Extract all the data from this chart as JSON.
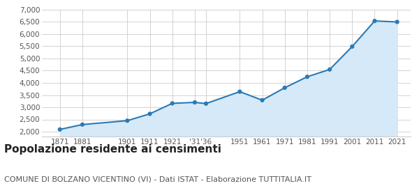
{
  "years": [
    1871,
    1881,
    1901,
    1911,
    1921,
    1931,
    1936,
    1951,
    1961,
    1971,
    1981,
    1991,
    2001,
    2011,
    2021
  ],
  "population": [
    2090,
    2290,
    2450,
    2730,
    3160,
    3200,
    3150,
    3640,
    3290,
    3800,
    4250,
    4550,
    5490,
    6540,
    6500
  ],
  "x_tick_labels": [
    "1871",
    "1881",
    "1901",
    "1911",
    "1921",
    "'31",
    "'36",
    "1951",
    "1961",
    "1971",
    "1981",
    "1991",
    "2001",
    "2011",
    "2021"
  ],
  "ylim_bottom": 1800,
  "ylim_top": 7000,
  "yticks": [
    2000,
    2500,
    3000,
    3500,
    4000,
    4500,
    5000,
    5500,
    6000,
    6500,
    7000
  ],
  "line_color": "#2a7ab5",
  "fill_color": "#d6e9f8",
  "marker_color": "#2a7ab5",
  "grid_color": "#cccccc",
  "background_color": "#ffffff",
  "title": "Popolazione residente ai censimenti",
  "subtitle": "COMUNE DI BOLZANO VICENTINO (VI) - Dati ISTAT - Elaborazione TUTTITALIA.IT",
  "title_fontsize": 11,
  "subtitle_fontsize": 8,
  "tick_fontsize": 7.5,
  "xlim_left": 1863,
  "xlim_right": 2027
}
